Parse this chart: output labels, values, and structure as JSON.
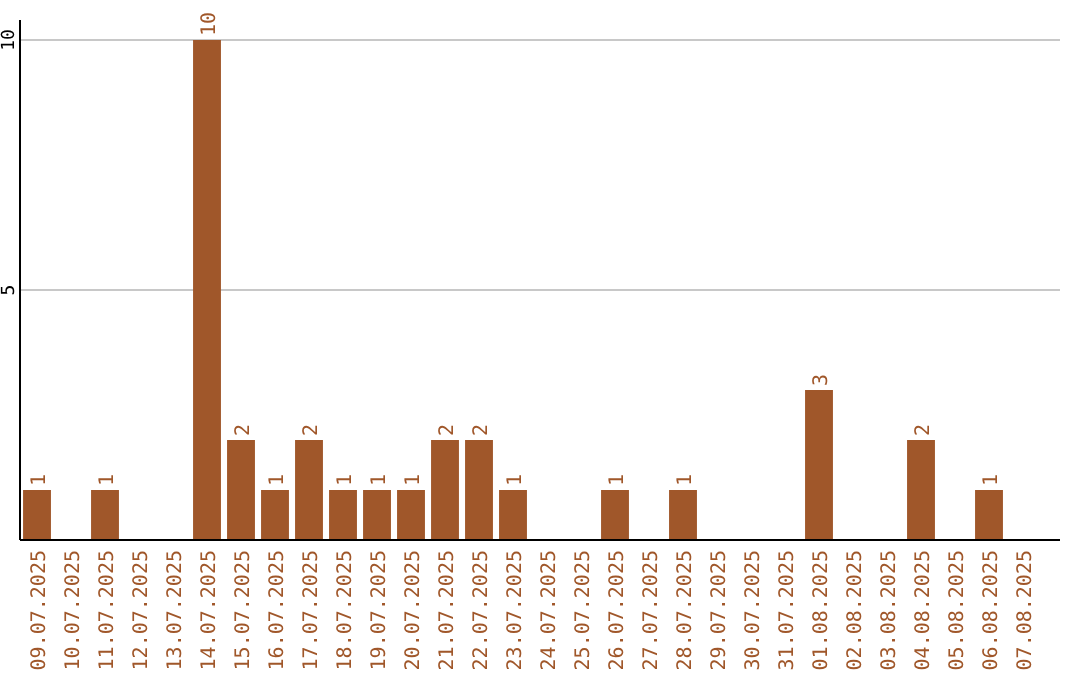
{
  "chart_data": {
    "type": "bar",
    "categories": [
      "09.07.2025",
      "10.07.2025",
      "11.07.2025",
      "12.07.2025",
      "13.07.2025",
      "14.07.2025",
      "15.07.2025",
      "16.07.2025",
      "17.07.2025",
      "18.07.2025",
      "19.07.2025",
      "20.07.2025",
      "21.07.2025",
      "22.07.2025",
      "23.07.2025",
      "24.07.2025",
      "25.07.2025",
      "26.07.2025",
      "27.07.2025",
      "28.07.2025",
      "29.07.2025",
      "30.07.2025",
      "31.07.2025",
      "01.08.2025",
      "02.08.2025",
      "03.08.2025",
      "04.08.2025",
      "05.08.2025",
      "06.08.2025",
      "07.08.2025"
    ],
    "values": [
      1,
      0,
      1,
      0,
      0,
      10,
      2,
      1,
      2,
      1,
      1,
      1,
      2,
      2,
      1,
      0,
      0,
      1,
      0,
      1,
      0,
      0,
      0,
      3,
      0,
      0,
      2,
      0,
      1,
      0
    ],
    "value_labels": [
      "1",
      null,
      "1",
      null,
      null,
      "10",
      "2",
      "1",
      "2",
      "1",
      "1",
      "1",
      "2",
      "2",
      "1",
      null,
      null,
      "1",
      null,
      "1",
      null,
      null,
      null,
      "3",
      null,
      null,
      "2",
      null,
      "1",
      null
    ],
    "color": "#a0572a",
    "ylim": [
      0,
      10
    ],
    "yticks": [
      {
        "value": 0,
        "label": null
      },
      5,
      10
    ],
    "grid": "y"
  }
}
